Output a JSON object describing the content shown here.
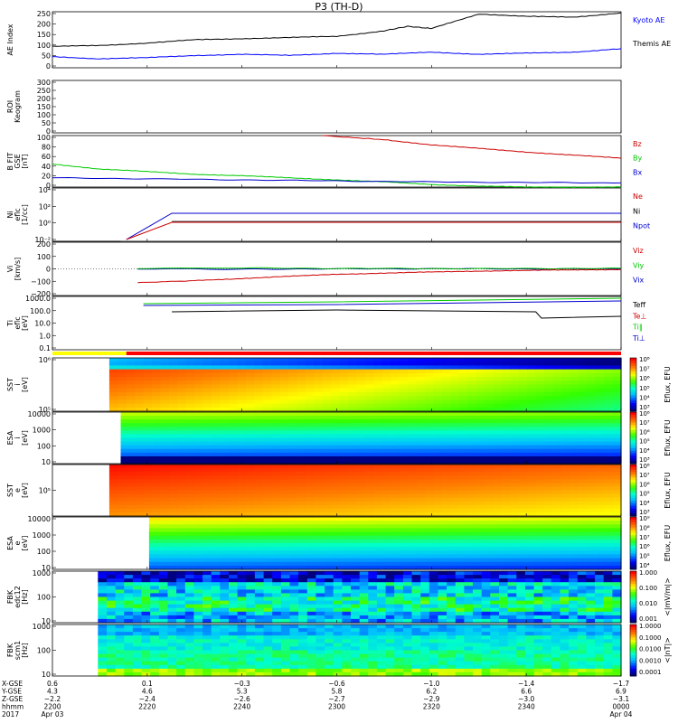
{
  "title": "P3 (TH-D)",
  "panels": [
    {
      "ylabel": [
        "AE Index"
      ],
      "ticks": [
        "250",
        "200",
        "150",
        "100",
        "50",
        "0"
      ],
      "legend": [
        {
          "text": "Kyoto AE",
          "color": "#0000ff"
        },
        {
          "text": "Themis AE",
          "color": "#000000"
        }
      ]
    },
    {
      "ylabel": [
        "ROI",
        "Keogram"
      ],
      "ticks": [
        "300",
        "250",
        "200",
        "150",
        "100",
        "50",
        "0"
      ],
      "legend": []
    },
    {
      "ylabel": [
        "B FIT",
        "GSE",
        "[nT]"
      ],
      "ticks": [
        "100",
        "80",
        "60",
        "40",
        "20",
        "0"
      ],
      "legend": [
        {
          "text": "Bz",
          "color": "#cc0000"
        },
        {
          "text": "By",
          "color": "#00cc00"
        },
        {
          "text": "Bx",
          "color": "#0000cc"
        }
      ]
    },
    {
      "ylabel": [
        "Ni",
        "eflc",
        "[1/cc]"
      ],
      "ticks": [
        "10⁴",
        "10²",
        "10⁰",
        "10⁻²"
      ],
      "legend": [
        {
          "text": "Ne",
          "color": "#cc0000"
        },
        {
          "text": "Ni",
          "color": "#000000"
        },
        {
          "text": "Npot",
          "color": "#0000cc"
        }
      ]
    },
    {
      "ylabel": [
        "Vi",
        "[km/s]"
      ],
      "ticks": [
        "200",
        "100",
        "0",
        "−100",
        "−200"
      ],
      "legend": [
        {
          "text": "Viz",
          "color": "#cc0000"
        },
        {
          "text": "Viy",
          "color": "#00cc00"
        },
        {
          "text": "Vix",
          "color": "#0000cc"
        }
      ]
    },
    {
      "ylabel": [
        "Ti",
        "eflc",
        "[eV]"
      ],
      "ticks": [
        "1000.0",
        "100.0",
        "10.0",
        "1.0",
        "0.1"
      ],
      "legend": [
        {
          "text": "Teff",
          "color": "#000000"
        },
        {
          "text": "Te⊥",
          "color": "#cc0000"
        },
        {
          "text": "Ti‖",
          "color": "#00cc00"
        },
        {
          "text": "Ti⊥",
          "color": "#0000cc"
        }
      ]
    },
    {
      "ylabel": [
        "SST",
        "i",
        "[eV]"
      ],
      "ticks": [
        "10⁶",
        "10⁵"
      ],
      "cb_label": "Eflux, EFU",
      "cb_ticks": [
        "10⁸",
        "10⁷",
        "10⁶",
        "10⁵",
        "10⁴",
        "10³"
      ]
    },
    {
      "ylabel": [
        "ESA",
        "i",
        "[eV]"
      ],
      "ticks": [
        "10000",
        "1000",
        "100",
        "10"
      ],
      "cb_label": "Eflux, EFU",
      "cb_ticks": [
        "10⁸",
        "10⁷",
        "10⁶",
        "10⁵",
        "10⁴",
        "10³"
      ]
    },
    {
      "ylabel": [
        "SST",
        "e",
        "[eV]"
      ],
      "ticks": [
        "10⁵"
      ],
      "cb_label": "Eflux, EFU",
      "cb_ticks": [
        "10⁸",
        "10⁷",
        "10⁶",
        "10⁵",
        "10⁴",
        "10³"
      ]
    },
    {
      "ylabel": [
        "ESA",
        "e",
        "[eV]"
      ],
      "ticks": [
        "10000",
        "1000",
        "100",
        "10"
      ],
      "cb_label": "Eflux, EFU",
      "cb_ticks": [
        "10⁹",
        "10⁸",
        "10⁷",
        "10⁶",
        "10⁵",
        "10⁴"
      ]
    },
    {
      "ylabel": [
        "FBK",
        "edc12",
        "[Hz]"
      ],
      "ticks": [
        "1000",
        "100",
        "10"
      ],
      "cb_label": "<|mV/m|>",
      "cb_ticks": [
        "1.000",
        "0.100",
        "0.010",
        "0.001"
      ]
    },
    {
      "ylabel": [
        "FBK",
        "scm1",
        "[Hz]"
      ],
      "ticks": [
        "1000",
        "100",
        "10"
      ],
      "cb_label": "<|nT|>",
      "cb_ticks": [
        "1.0000",
        "0.1000",
        "0.0100",
        "0.0010",
        "0.0001"
      ]
    }
  ],
  "xaxis": {
    "row_labels": [
      "X-GSE",
      "Y-GSE",
      "Z-GSE",
      "hhmm",
      "2017"
    ],
    "columns": [
      {
        "lines": [
          "0.6",
          "4.3",
          "−2.2",
          "2200",
          "Apr 03"
        ]
      },
      {
        "lines": [
          "0.1",
          "4.6",
          "−2.4",
          "2220",
          ""
        ]
      },
      {
        "lines": [
          "−0.3",
          "5.3",
          "−2.6",
          "2240",
          ""
        ]
      },
      {
        "lines": [
          "−0.6",
          "5.8",
          "−2.7",
          "2300",
          ""
        ]
      },
      {
        "lines": [
          "−1.0",
          "6.2",
          "−2.9",
          "2320",
          ""
        ]
      },
      {
        "lines": [
          "−1.4",
          "6.6",
          "−3.0",
          "2340",
          ""
        ]
      },
      {
        "lines": [
          "−1.7",
          "6.9",
          "−3.1",
          "0000",
          "Apr 04"
        ]
      }
    ]
  },
  "chart_data": {
    "type": "line",
    "title": "P3 (TH-D)",
    "x_label": "hhmm",
    "x_ticks": [
      "2200",
      "2220",
      "2240",
      "2300",
      "2320",
      "2340",
      "0000"
    ],
    "x_minutes": [
      0,
      20,
      40,
      60,
      80,
      100,
      120
    ],
    "series": [
      {
        "panel": "AE Index",
        "name": "Kyoto AE",
        "color": "#0000ff",
        "x": [
          0,
          10,
          20,
          30,
          40,
          50,
          60,
          70,
          80,
          90,
          100,
          110,
          120
        ],
        "y": [
          50,
          40,
          45,
          55,
          60,
          55,
          65,
          60,
          70,
          60,
          65,
          70,
          85
        ]
      },
      {
        "panel": "AE Index",
        "name": "Themis AE",
        "color": "#000000",
        "x": [
          0,
          10,
          20,
          30,
          40,
          50,
          60,
          70,
          75,
          80,
          90,
          100,
          110,
          120
        ],
        "y": [
          95,
          100,
          110,
          125,
          130,
          135,
          140,
          165,
          185,
          175,
          240,
          230,
          225,
          245
        ]
      },
      {
        "panel": "B FIT GSE",
        "name": "Bz",
        "color": "#cc0000",
        "x": [
          57,
          70,
          80,
          90,
          100,
          110,
          120
        ],
        "y": [
          100,
          92,
          82,
          75,
          68,
          62,
          56
        ]
      },
      {
        "panel": "B FIT GSE",
        "name": "By",
        "color": "#00cc00",
        "x": [
          0,
          10,
          20,
          30,
          40,
          50,
          60,
          70,
          80,
          90,
          100,
          110,
          120
        ],
        "y": [
          45,
          35,
          30,
          25,
          22,
          18,
          14,
          10,
          5,
          2,
          0,
          0,
          0
        ]
      },
      {
        "panel": "B FIT GSE",
        "name": "Bx",
        "color": "#0000cc",
        "x": [
          0,
          20,
          40,
          60,
          80,
          100,
          120
        ],
        "y": [
          18,
          16,
          14,
          12,
          10,
          9,
          8
        ]
      },
      {
        "panel": "Vi",
        "name": "Vix",
        "color": "#0000cc",
        "x": [
          18,
          40,
          60,
          80,
          100,
          120
        ],
        "y": [
          0,
          -2,
          0,
          2,
          0,
          0
        ]
      },
      {
        "panel": "Vi",
        "name": "Viy",
        "color": "#00cc00",
        "x": [
          18,
          40,
          60,
          80,
          100,
          120
        ],
        "y": [
          5,
          8,
          4,
          3,
          2,
          6
        ]
      },
      {
        "panel": "Vi",
        "name": "Viz",
        "color": "#cc0000",
        "x": [
          18,
          30,
          40,
          50,
          60,
          70,
          80,
          90,
          100,
          110,
          120
        ],
        "y": [
          -130,
          -110,
          -90,
          -70,
          -50,
          -40,
          -30,
          -20,
          -15,
          -10,
          -5
        ]
      }
    ],
    "ylim": {
      "AE Index": [
        0,
        250
      ],
      "B FIT GSE": [
        0,
        100
      ],
      "Vi": [
        -250,
        250
      ]
    }
  }
}
